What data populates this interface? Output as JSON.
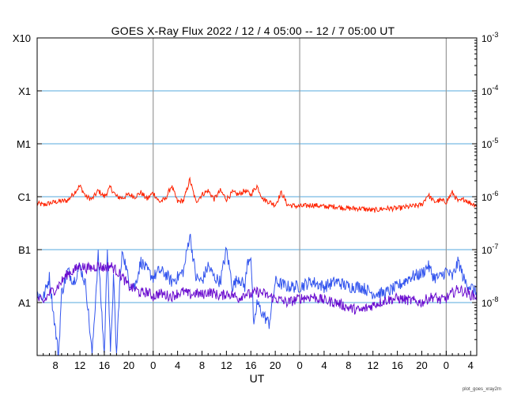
{
  "chart_data": {
    "type": "line",
    "title": "GOES X-Ray Flux   2022 / 12 /  4   05:00 -- 12 /  7   05:00   UT",
    "xlabel": "UT",
    "ylabel": "",
    "yscale": "log",
    "ylim": [
      1e-09,
      0.001
    ],
    "y_left_ticks": [
      "X10",
      "X1",
      "M1",
      "C1",
      "B1",
      "A1"
    ],
    "y_right_ticks": [
      "10-3",
      "10-4",
      "10-5",
      "10-6",
      "10-7",
      "10-8"
    ],
    "x_ticks": [
      "8",
      "12",
      "16",
      "20",
      "0",
      "4",
      "8",
      "12",
      "16",
      "20",
      "0",
      "4",
      "8",
      "12",
      "16",
      "20",
      "0",
      "4"
    ],
    "x_tick_hours": [
      8,
      12,
      16,
      20,
      24,
      28,
      32,
      36,
      40,
      44,
      48,
      52,
      56,
      60,
      64,
      68,
      72,
      76
    ],
    "xlim_hours": [
      5,
      77
    ],
    "day_boundaries_hours": [
      24,
      48,
      72
    ],
    "grid": "horizontal at each decade, vertical at day boundaries",
    "series": [
      {
        "color": "#ff2200",
        "x": [
          5,
          6,
          8,
          10,
          12,
          13,
          14,
          15,
          16,
          17,
          18,
          19,
          20,
          21,
          22,
          23,
          24,
          25,
          26,
          27,
          28,
          29,
          30,
          31,
          32,
          33,
          34,
          35,
          36,
          37,
          38,
          39,
          40,
          41,
          42,
          43,
          44,
          45,
          46,
          48,
          50,
          52,
          54,
          56,
          58,
          60,
          62,
          64,
          66,
          68,
          69,
          70,
          71,
          72,
          73,
          74,
          75,
          76,
          77
        ],
        "y": [
          7.5e-07,
          7e-07,
          8e-07,
          8.5e-07,
          1.6e-06,
          1e-06,
          9e-07,
          1.3e-06,
          1e-06,
          1.5e-06,
          1e-06,
          9.5e-07,
          1.1e-06,
          1e-06,
          1.2e-06,
          9e-07,
          1.2e-06,
          8e-07,
          9e-07,
          1.6e-06,
          8e-07,
          8.5e-07,
          2.1e-06,
          8e-07,
          1.1e-06,
          1.3e-06,
          9e-07,
          1.3e-06,
          9e-07,
          1.2e-06,
          1.1e-06,
          1.3e-06,
          1.1e-06,
          1.6e-06,
          9e-07,
          8e-07,
          7e-07,
          1.2e-06,
          7e-07,
          6.5e-07,
          7e-07,
          6.5e-07,
          6.5e-07,
          6e-07,
          6e-07,
          5.5e-07,
          6e-07,
          6e-07,
          6.5e-07,
          7e-07,
          1.1e-06,
          8e-07,
          8.5e-07,
          8e-07,
          1.2e-06,
          8e-07,
          9e-07,
          7.5e-07,
          7e-07
        ]
      },
      {
        "color": "#3355ee",
        "x": [
          5,
          6,
          7,
          8,
          8.5,
          9,
          10,
          11,
          12,
          13,
          14,
          15,
          16,
          16.5,
          17,
          17.5,
          18,
          18.5,
          19,
          20,
          21,
          22,
          23,
          24,
          25,
          26,
          27,
          28,
          29,
          30,
          31,
          32,
          33,
          34,
          35,
          36,
          37,
          38,
          39,
          39.5,
          40,
          40.5,
          41,
          42,
          43,
          44,
          46,
          48,
          50,
          52,
          54,
          56,
          58,
          60,
          62,
          64,
          66,
          68,
          69,
          70,
          71,
          72,
          73,
          74,
          75,
          76,
          77
        ],
        "y": [
          1.5e-08,
          1.2e-08,
          3e-08,
          3e-09,
          1e-09,
          1.5e-08,
          4e-08,
          2.5e-08,
          5e-08,
          2e-08,
          1e-09,
          8e-08,
          1e-09,
          1.2e-07,
          1e-09,
          3e-08,
          1e-09,
          2e-08,
          1e-07,
          2.5e-08,
          2e-08,
          6e-08,
          4e-08,
          3e-08,
          4e-08,
          3.5e-08,
          2.5e-08,
          3e-08,
          4e-08,
          2e-07,
          3e-08,
          2.5e-08,
          5e-08,
          3e-08,
          2.5e-08,
          1e-07,
          2e-08,
          3e-08,
          2e-08,
          6e-08,
          8e-08,
          3e-09,
          1e-08,
          6e-09,
          4e-09,
          2.5e-08,
          2e-08,
          2e-08,
          2.5e-08,
          2e-08,
          2.5e-08,
          2e-08,
          2e-08,
          1.5e-08,
          1.5e-08,
          2e-08,
          3e-08,
          3.5e-08,
          5e-08,
          3e-08,
          3e-08,
          4e-08,
          3e-08,
          6e-08,
          2.5e-08,
          2e-08,
          1.5e-08
        ]
      },
      {
        "color": "#6a0ccf",
        "x": [
          5,
          6,
          7,
          8,
          9,
          10,
          11,
          12,
          13,
          14,
          15,
          16,
          17,
          18,
          19,
          20,
          21,
          22,
          23,
          24,
          25,
          26,
          27,
          28,
          29,
          30,
          31,
          32,
          33,
          34,
          35,
          36,
          37,
          38,
          39,
          40,
          41,
          42,
          43,
          44,
          46,
          48,
          50,
          52,
          54,
          56,
          58,
          60,
          62,
          64,
          66,
          68,
          69,
          70,
          71,
          72,
          73,
          74,
          75,
          76,
          77
        ],
        "y": [
          1.2e-08,
          1e-08,
          1.5e-08,
          1.8e-08,
          2.5e-08,
          3.5e-08,
          4e-08,
          5e-08,
          4.5e-08,
          4.5e-08,
          5e-08,
          4.5e-08,
          5e-08,
          4e-08,
          3e-08,
          2e-08,
          1.8e-08,
          1.5e-08,
          1.6e-08,
          1.3e-08,
          1.5e-08,
          1.4e-08,
          1.3e-08,
          1.5e-08,
          1.6e-08,
          1.4e-08,
          1.5e-08,
          1.4e-08,
          1.6e-08,
          1.5e-08,
          1.3e-08,
          1.5e-08,
          1.4e-08,
          1.2e-08,
          1.5e-08,
          1.4e-08,
          1.6e-08,
          1.5e-08,
          1.3e-08,
          1.2e-08,
          1e-08,
          1.2e-08,
          1.3e-08,
          1.1e-08,
          1e-08,
          8e-09,
          7e-09,
          9e-09,
          1.1e-08,
          1.2e-08,
          1.1e-08,
          1e-08,
          1.2e-08,
          1.3e-08,
          1.1e-08,
          1.2e-08,
          1.5e-08,
          1.8e-08,
          1.6e-08,
          1.4e-08,
          1.3e-08
        ]
      }
    ]
  },
  "footer": "plot_goes_xray2m"
}
